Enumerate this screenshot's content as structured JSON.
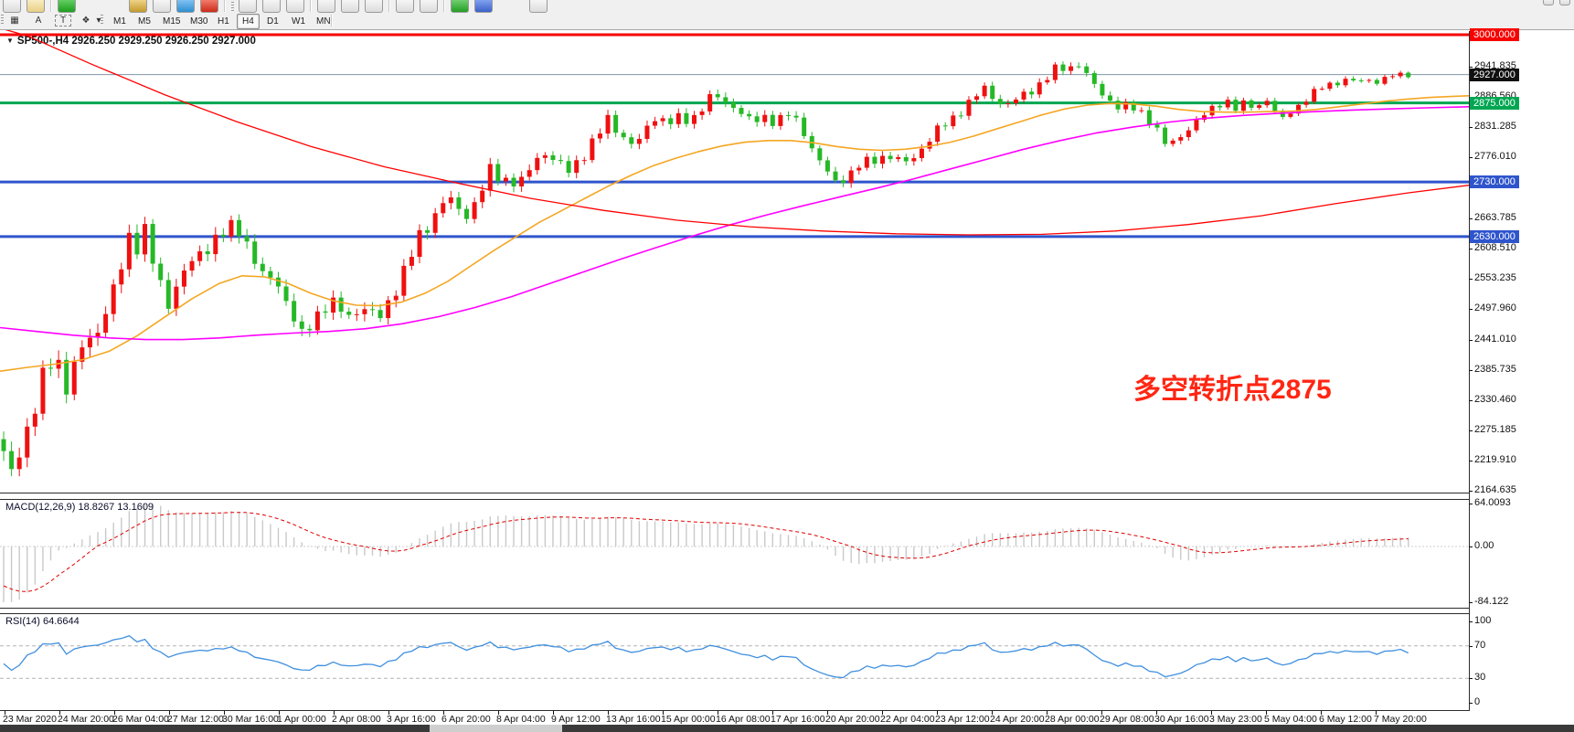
{
  "app": {
    "name": "MetaTrader chart window"
  },
  "toolbar": {
    "row1_icons": [
      "window-icon",
      "zoom-icon",
      "sep",
      "new-order-icon",
      "gap",
      "expert-icon",
      "autotrade-icon",
      "globe-icon",
      "stop-icon",
      "sep",
      "grip",
      "scroll-left-icon",
      "scroll-right-icon",
      "chart-shift-icon",
      "sep",
      "draw-line-icon",
      "draw-text-icon",
      "grid-icon",
      "sep",
      "zoom-in-icon",
      "zoom-out-icon",
      "sep",
      "add-indicator-icon",
      "shield-icon",
      "new-chart-icon"
    ],
    "row2_tools": [
      {
        "name": "cursor-box-icon",
        "glyph": "▦"
      },
      {
        "name": "crosshair-tool",
        "glyph": "A"
      },
      {
        "name": "text-tool",
        "glyph": "T"
      },
      {
        "name": "shapes-tool",
        "glyph": "❖"
      },
      {
        "name": "shapes-caret",
        "glyph": "▾"
      }
    ],
    "timeframes": [
      "M1",
      "M5",
      "M15",
      "M30",
      "H1",
      "H4",
      "D1",
      "W1",
      "MN"
    ],
    "active_timeframe": "H4"
  },
  "chart": {
    "title_symbol": "SP500-,H4",
    "title_ohlc": "2926.250 2929.250 2926.250 2927.000",
    "macd_label": "MACD(12,26,9) 18.8267 13.1609",
    "rsi_label": "RSI(14) 64.6644",
    "annotation": {
      "text": "多空转折点2875",
      "color": "#ff2613"
    }
  },
  "axes": {
    "price_ticks": [
      "2941.835",
      "2886.560",
      "2831.285",
      "2776.010",
      "2663.785",
      "2608.510",
      "2553.235",
      "2497.960",
      "2441.010",
      "2385.735",
      "2330.460",
      "2275.185",
      "2219.910",
      "2164.635"
    ],
    "macd_ticks": [
      "64.0093",
      "0.00",
      "-84.122"
    ],
    "rsi_ticks": [
      "100",
      "70",
      "30",
      "0"
    ],
    "dates": [
      "23 Mar 2020",
      "24 Mar 20:00",
      "26 Mar 04:00",
      "27 Mar 12:00",
      "30 Mar 16:00",
      "1 Apr 00:00",
      "2 Apr 08:00",
      "3 Apr 16:00",
      "6 Apr 20:00",
      "8 Apr 04:00",
      "9 Apr 12:00",
      "13 Apr 16:00",
      "15 Apr 00:00",
      "16 Apr 08:00",
      "17 Apr 16:00",
      "20 Apr 20:00",
      "22 Apr 04:00",
      "23 Apr 12:00",
      "24 Apr 20:00",
      "28 Apr 00:00",
      "29 Apr 08:00",
      "30 Apr 16:00",
      "3 May 23:00",
      "5 May 04:00",
      "6 May 12:00",
      "7 May 20:00"
    ]
  },
  "chart_data": {
    "type": "candlestick",
    "symbol": "SP500-",
    "timeframe": "H4",
    "x_range": [
      "23 Mar 2020 00:00",
      "7 May 2020 20:00"
    ],
    "main_ylim": [
      2164.635,
      3000.0
    ],
    "macd_ylim": [
      -84.122,
      64.0093
    ],
    "rsi_ylim": [
      0,
      100
    ],
    "current_price": 2927.0,
    "candle_count": 180,
    "colors": {
      "up": "#ef1010",
      "down": "#26b826",
      "macd_hist": "#c9c9c9",
      "macd_signal": "#e00000",
      "rsi_line": "#3f8fde"
    },
    "levels": [
      {
        "label": "3000.000",
        "value": 3000.0,
        "line": "#f60000",
        "badge": "#f60000",
        "lw": 3
      },
      {
        "label": "2927.000",
        "value": 2927.0,
        "line": "#8094aa",
        "badge": "#101010",
        "lw": 1
      },
      {
        "label": "2875.000",
        "value": 2875.0,
        "line": "#00a651",
        "badge": "#00a651",
        "lw": 3
      },
      {
        "label": "2730.000",
        "value": 2730.0,
        "line": "#2f55cc",
        "badge": "#2f55cc",
        "lw": 3
      },
      {
        "label": "2630.000",
        "value": 2630.0,
        "line": "#2f55cc",
        "badge": "#2f55cc",
        "lw": 3
      }
    ],
    "price_path": [
      [
        0,
        2255
      ],
      [
        10,
        2190
      ],
      [
        22,
        2245
      ],
      [
        36,
        2295
      ],
      [
        50,
        2390
      ],
      [
        60,
        2420
      ],
      [
        74,
        2345
      ],
      [
        92,
        2440
      ],
      [
        108,
        2460
      ],
      [
        124,
        2525
      ],
      [
        142,
        2635
      ],
      [
        150,
        2615
      ],
      [
        158,
        2640
      ],
      [
        172,
        2555
      ],
      [
        184,
        2510
      ],
      [
        200,
        2560
      ],
      [
        216,
        2595
      ],
      [
        232,
        2620
      ],
      [
        248,
        2640
      ],
      [
        260,
        2650
      ],
      [
        274,
        2605
      ],
      [
        290,
        2545
      ],
      [
        300,
        2560
      ],
      [
        314,
        2510
      ],
      [
        330,
        2445
      ],
      [
        344,
        2480
      ],
      [
        358,
        2510
      ],
      [
        370,
        2500
      ],
      [
        382,
        2480
      ],
      [
        394,
        2505
      ],
      [
        406,
        2490
      ],
      [
        416,
        2480
      ],
      [
        430,
        2525
      ],
      [
        444,
        2575
      ],
      [
        458,
        2625
      ],
      [
        474,
        2665
      ],
      [
        488,
        2705
      ],
      [
        500,
        2680
      ],
      [
        510,
        2668
      ],
      [
        522,
        2700
      ],
      [
        538,
        2755
      ],
      [
        548,
        2732
      ],
      [
        560,
        2735
      ],
      [
        570,
        2728
      ],
      [
        584,
        2765
      ],
      [
        596,
        2785
      ],
      [
        608,
        2770
      ],
      [
        622,
        2748
      ],
      [
        636,
        2775
      ],
      [
        652,
        2812
      ],
      [
        666,
        2845
      ],
      [
        680,
        2815
      ],
      [
        696,
        2795
      ],
      [
        710,
        2835
      ],
      [
        718,
        2852
      ],
      [
        730,
        2840
      ],
      [
        744,
        2845
      ],
      [
        756,
        2842
      ],
      [
        768,
        2868
      ],
      [
        780,
        2890
      ],
      [
        794,
        2875
      ],
      [
        808,
        2865
      ],
      [
        822,
        2838
      ],
      [
        836,
        2848
      ],
      [
        850,
        2842
      ],
      [
        862,
        2855
      ],
      [
        876,
        2832
      ],
      [
        890,
        2788
      ],
      [
        904,
        2750
      ],
      [
        914,
        2728
      ],
      [
        926,
        2740
      ],
      [
        940,
        2762
      ],
      [
        952,
        2766
      ],
      [
        964,
        2775
      ],
      [
        976,
        2780
      ],
      [
        988,
        2762
      ],
      [
        1000,
        2775
      ],
      [
        1012,
        2800
      ],
      [
        1026,
        2826
      ],
      [
        1040,
        2842
      ],
      [
        1054,
        2866
      ],
      [
        1068,
        2888
      ],
      [
        1078,
        2902
      ],
      [
        1090,
        2878
      ],
      [
        1104,
        2872
      ],
      [
        1118,
        2888
      ],
      [
        1132,
        2902
      ],
      [
        1146,
        2922
      ],
      [
        1158,
        2942
      ],
      [
        1168,
        2935
      ],
      [
        1178,
        2952
      ],
      [
        1188,
        2928
      ],
      [
        1200,
        2900
      ],
      [
        1212,
        2882
      ],
      [
        1224,
        2868
      ],
      [
        1236,
        2868
      ],
      [
        1248,
        2858
      ],
      [
        1262,
        2838
      ],
      [
        1274,
        2800
      ],
      [
        1284,
        2802
      ],
      [
        1296,
        2822
      ],
      [
        1308,
        2840
      ],
      [
        1320,
        2856
      ],
      [
        1332,
        2872
      ],
      [
        1342,
        2880
      ],
      [
        1352,
        2864
      ],
      [
        1362,
        2874
      ],
      [
        1374,
        2866
      ],
      [
        1386,
        2882
      ],
      [
        1396,
        2855
      ],
      [
        1404,
        2845
      ],
      [
        1416,
        2865
      ],
      [
        1428,
        2880
      ],
      [
        1440,
        2898
      ],
      [
        1452,
        2908
      ],
      [
        1464,
        2913
      ],
      [
        1476,
        2919
      ],
      [
        1486,
        2912
      ],
      [
        1496,
        2919
      ],
      [
        1506,
        2913
      ],
      [
        1516,
        2921
      ],
      [
        1526,
        2926
      ],
      [
        1538,
        2927
      ]
    ],
    "volatility": [
      [
        0,
        55
      ],
      [
        100,
        50
      ],
      [
        200,
        42
      ],
      [
        330,
        40
      ],
      [
        450,
        38
      ],
      [
        600,
        30
      ],
      [
        800,
        26
      ],
      [
        950,
        26
      ],
      [
        1100,
        22
      ],
      [
        1250,
        22
      ],
      [
        1400,
        16
      ],
      [
        1540,
        12
      ]
    ],
    "overlays": [
      {
        "name": "ma-fast-orange",
        "color": "#f5a623",
        "width": 1.6,
        "points": [
          [
            0,
            2383
          ],
          [
            30,
            2390
          ],
          [
            60,
            2396
          ],
          [
            90,
            2404
          ],
          [
            120,
            2420
          ],
          [
            150,
            2448
          ],
          [
            180,
            2482
          ],
          [
            210,
            2516
          ],
          [
            240,
            2544
          ],
          [
            265,
            2558
          ],
          [
            290,
            2556
          ],
          [
            315,
            2544
          ],
          [
            340,
            2526
          ],
          [
            365,
            2512
          ],
          [
            390,
            2504
          ],
          [
            415,
            2503
          ],
          [
            440,
            2510
          ],
          [
            465,
            2526
          ],
          [
            490,
            2548
          ],
          [
            515,
            2576
          ],
          [
            540,
            2604
          ],
          [
            565,
            2630
          ],
          [
            590,
            2656
          ],
          [
            615,
            2678
          ],
          [
            640,
            2700
          ],
          [
            665,
            2722
          ],
          [
            690,
            2742
          ],
          [
            715,
            2760
          ],
          [
            740,
            2774
          ],
          [
            765,
            2786
          ],
          [
            790,
            2796
          ],
          [
            815,
            2803
          ],
          [
            840,
            2806
          ],
          [
            865,
            2806
          ],
          [
            890,
            2802
          ],
          [
            915,
            2795
          ],
          [
            940,
            2790
          ],
          [
            965,
            2788
          ],
          [
            990,
            2790
          ],
          [
            1015,
            2795
          ],
          [
            1040,
            2803
          ],
          [
            1065,
            2814
          ],
          [
            1090,
            2827
          ],
          [
            1115,
            2840
          ],
          [
            1140,
            2853
          ],
          [
            1165,
            2864
          ],
          [
            1190,
            2871
          ],
          [
            1215,
            2874
          ],
          [
            1240,
            2873
          ],
          [
            1265,
            2869
          ],
          [
            1290,
            2863
          ],
          [
            1315,
            2859
          ],
          [
            1340,
            2858
          ],
          [
            1365,
            2858
          ],
          [
            1390,
            2859
          ],
          [
            1415,
            2860
          ],
          [
            1440,
            2863
          ],
          [
            1465,
            2868
          ],
          [
            1490,
            2873
          ],
          [
            1515,
            2878
          ],
          [
            1540,
            2882
          ],
          [
            1565,
            2885
          ],
          [
            1590,
            2887
          ],
          [
            1607,
            2888
          ]
        ]
      },
      {
        "name": "ma-mid-magenta",
        "color": "#ff00ff",
        "width": 1.6,
        "points": [
          [
            0,
            2463
          ],
          [
            40,
            2456
          ],
          [
            80,
            2449
          ],
          [
            120,
            2444
          ],
          [
            160,
            2441
          ],
          [
            200,
            2441
          ],
          [
            240,
            2444
          ],
          [
            280,
            2449
          ],
          [
            320,
            2453
          ],
          [
            360,
            2456
          ],
          [
            400,
            2461
          ],
          [
            440,
            2470
          ],
          [
            480,
            2483
          ],
          [
            520,
            2500
          ],
          [
            560,
            2520
          ],
          [
            600,
            2543
          ],
          [
            640,
            2566
          ],
          [
            680,
            2589
          ],
          [
            720,
            2611
          ],
          [
            760,
            2632
          ],
          [
            800,
            2652
          ],
          [
            840,
            2670
          ],
          [
            880,
            2687
          ],
          [
            920,
            2703
          ],
          [
            960,
            2719
          ],
          [
            1000,
            2736
          ],
          [
            1040,
            2754
          ],
          [
            1080,
            2772
          ],
          [
            1120,
            2790
          ],
          [
            1160,
            2806
          ],
          [
            1200,
            2820
          ],
          [
            1240,
            2831
          ],
          [
            1280,
            2840
          ],
          [
            1320,
            2847
          ],
          [
            1360,
            2852
          ],
          [
            1400,
            2856
          ],
          [
            1440,
            2859
          ],
          [
            1480,
            2862
          ],
          [
            1520,
            2864
          ],
          [
            1560,
            2866
          ],
          [
            1607,
            2868
          ]
        ]
      },
      {
        "name": "ma-slow-red",
        "color": "#ff0000",
        "width": 1.3,
        "points": [
          [
            0,
            3012
          ],
          [
            30,
            2998
          ],
          [
            100,
            2946
          ],
          [
            180,
            2890
          ],
          [
            260,
            2840
          ],
          [
            340,
            2795
          ],
          [
            420,
            2758
          ],
          [
            500,
            2728
          ],
          [
            580,
            2700
          ],
          [
            660,
            2678
          ],
          [
            740,
            2660
          ],
          [
            820,
            2648
          ],
          [
            900,
            2640
          ],
          [
            980,
            2635
          ],
          [
            1060,
            2633
          ],
          [
            1140,
            2634
          ],
          [
            1220,
            2640
          ],
          [
            1300,
            2652
          ],
          [
            1380,
            2668
          ],
          [
            1460,
            2690
          ],
          [
            1540,
            2710
          ],
          [
            1607,
            2724
          ]
        ]
      }
    ],
    "indicators": {
      "macd": {
        "params": "12,26,9",
        "value": 18.8267,
        "signal_value": 13.1609
      },
      "rsi": {
        "params": "14",
        "value": 64.6644,
        "levels": [
          70,
          30
        ]
      }
    }
  }
}
